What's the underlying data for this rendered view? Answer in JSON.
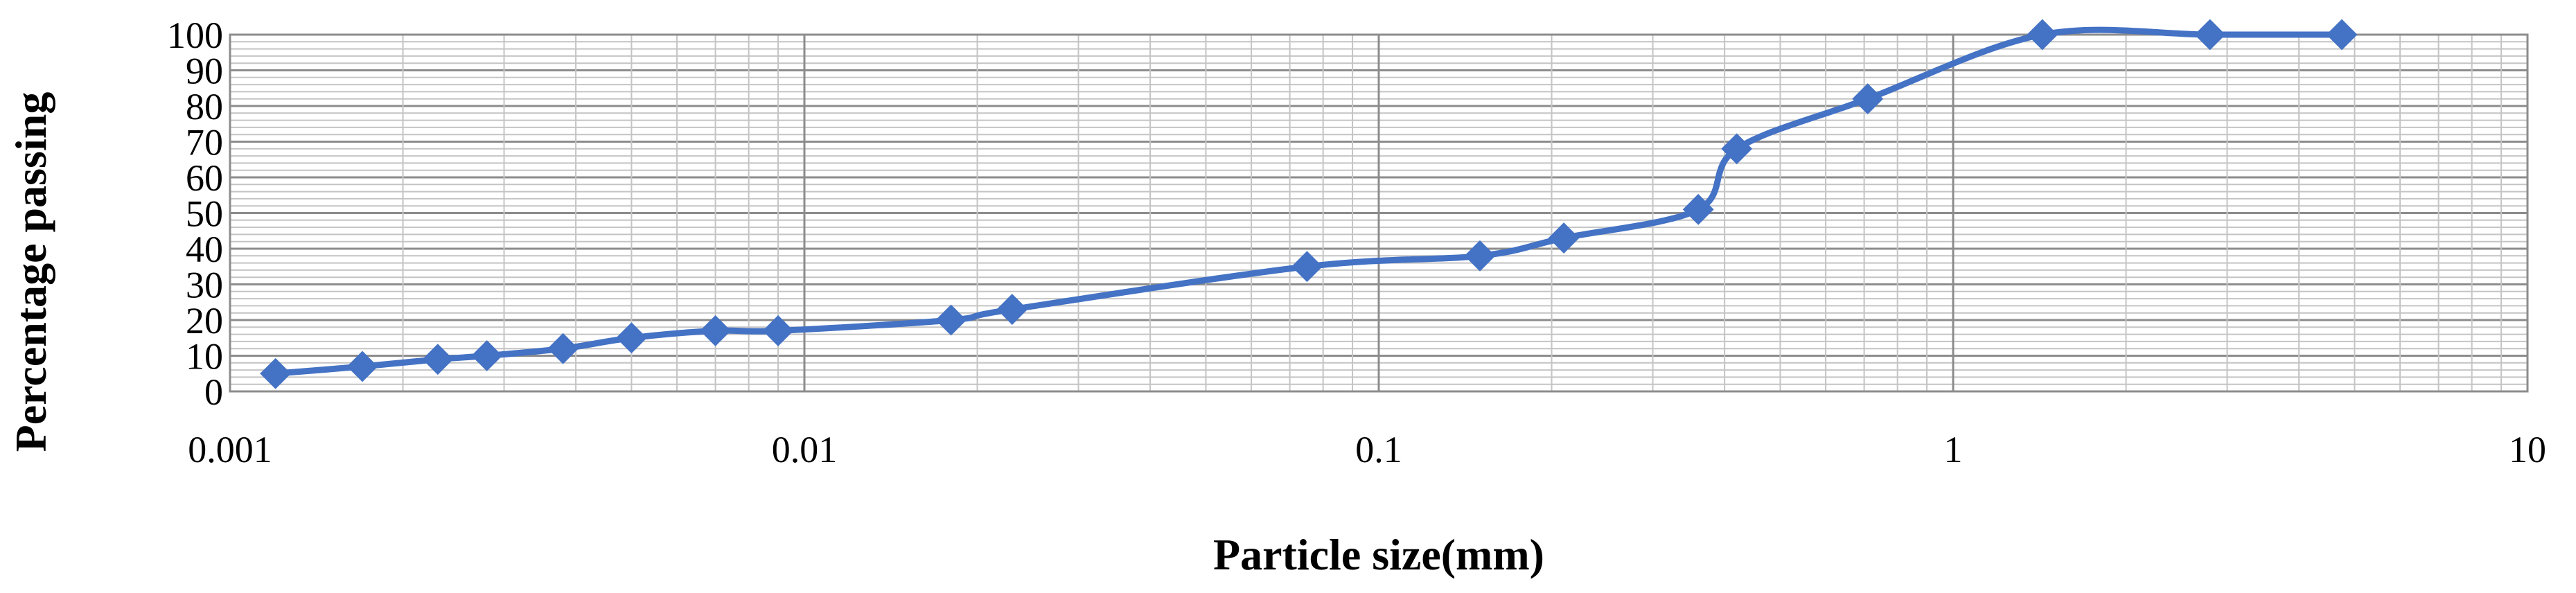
{
  "chart_data": {
    "type": "line",
    "title": "",
    "xlabel": "Particle size(mm)",
    "ylabel": "Percentage passing",
    "x_scale": "log",
    "xlim": [
      0.001,
      10
    ],
    "ylim": [
      0,
      100
    ],
    "x_ticks": [
      "0.001",
      "0.01",
      "0.1",
      "1",
      "10"
    ],
    "y_ticks": [
      "0",
      "10",
      "20",
      "30",
      "40",
      "50",
      "60",
      "70",
      "80",
      "90",
      "100"
    ],
    "grid": true,
    "legend": "none",
    "series": [
      {
        "color": "#4472C4",
        "marker": "diamond",
        "x": [
          0.0012,
          0.0017,
          0.0023,
          0.0028,
          0.0038,
          0.005,
          0.007,
          0.009,
          0.018,
          0.023,
          0.075,
          0.15,
          0.21,
          0.36,
          0.42,
          0.71,
          1.43,
          2.8,
          4.75
        ],
        "y": [
          5,
          7,
          9,
          10,
          12,
          15,
          17,
          17,
          20,
          23,
          35,
          38,
          43,
          51,
          68,
          82,
          100,
          100,
          100
        ]
      }
    ]
  }
}
